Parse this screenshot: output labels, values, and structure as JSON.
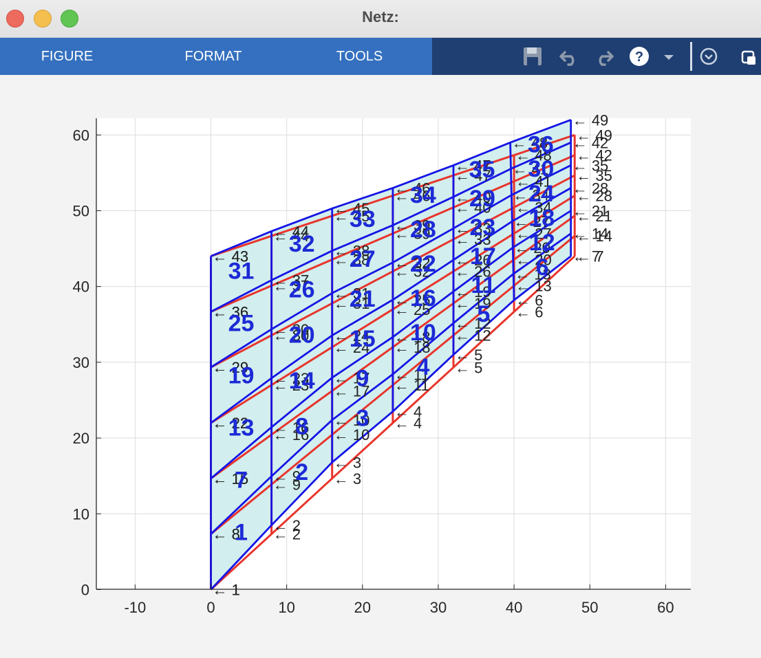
{
  "window": {
    "title": "Netz:"
  },
  "toolstrip": {
    "tabs": [
      {
        "label": "FIGURE"
      },
      {
        "label": "FORMAT"
      },
      {
        "label": "TOOLS"
      }
    ],
    "icons": [
      "save-icon",
      "undo-icon",
      "redo-icon",
      "help-icon",
      "dropdown-icon",
      "collapse-icon",
      "undock-icon"
    ]
  },
  "chart_data": {
    "type": "mesh",
    "xlim": [
      -15,
      63
    ],
    "ylim": [
      0,
      62
    ],
    "xticks": [
      -10,
      0,
      10,
      20,
      30,
      40,
      50,
      60
    ],
    "yticks": [
      0,
      10,
      20,
      30,
      40,
      50,
      60
    ],
    "grid": true,
    "colors": {
      "undeformed": "#e8352c",
      "deformed": "#1515e6",
      "fill": "#d2eeee",
      "element_label": "#1c2ad6",
      "node_label": "#222222"
    },
    "undeformed_mesh": {
      "columns": 7,
      "x": [
        0,
        8,
        16,
        24,
        32,
        40,
        48
      ],
      "bottom_y": [
        0,
        7.33,
        14.67,
        22,
        29.33,
        36.67,
        44
      ],
      "top_y": [
        44,
        46.67,
        49.33,
        52,
        54.67,
        57.33,
        60
      ]
    },
    "deformed_mesh": {
      "columns": 7,
      "x_bottom": [
        0,
        8,
        16,
        24,
        32,
        40,
        47.5
      ],
      "x_top": [
        0,
        8,
        16,
        24,
        32,
        39.5,
        47.5
      ],
      "bottom_y": [
        0,
        8.5,
        16.8,
        23.5,
        31,
        38.2,
        44
      ],
      "top_y": [
        44,
        47.3,
        50.3,
        53,
        56,
        59,
        62
      ]
    },
    "element_labels": [
      "1",
      "2",
      "3",
      "4",
      "5",
      "6",
      "7",
      "8",
      "9",
      "10",
      "11",
      "12",
      "13",
      "14",
      "15",
      "16",
      "17",
      "18",
      "19",
      "20",
      "21",
      "22",
      "23",
      "24",
      "25",
      "26",
      "27",
      "28",
      "29",
      "30",
      "31",
      "32",
      "33",
      "34",
      "35",
      "36"
    ],
    "node_labels": [
      "1",
      "2",
      "3",
      "4",
      "5",
      "6",
      "7",
      "8",
      "9",
      "10",
      "11",
      "12",
      "13",
      "14",
      "15",
      "16",
      "17",
      "18",
      "19",
      "20",
      "21",
      "22",
      "23",
      "24",
      "25",
      "26",
      "27",
      "28",
      "29",
      "30",
      "31",
      "32",
      "33",
      "34",
      "35",
      "36",
      "37",
      "38",
      "39",
      "40",
      "41",
      "42",
      "43",
      "44",
      "45",
      "46",
      "47",
      "48",
      "49"
    ],
    "arrow_prefix": "← "
  }
}
